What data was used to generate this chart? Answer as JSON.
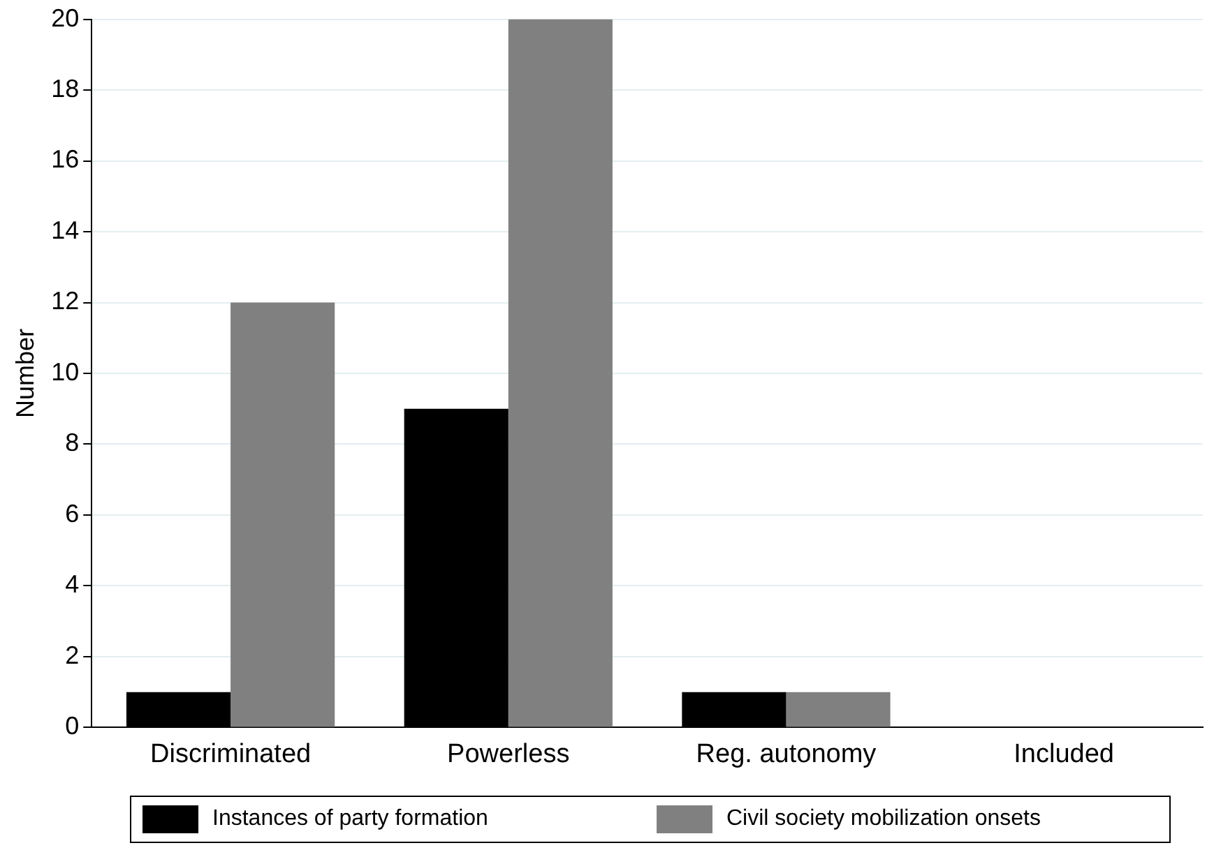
{
  "chart_data": {
    "type": "bar",
    "ylabel": "Number",
    "categories": [
      "Discriminated",
      "Powerless",
      "Reg. autonomy",
      "Included"
    ],
    "series": [
      {
        "name": "Instances of party formation",
        "color": "#000000",
        "values": [
          1,
          9,
          1,
          0
        ]
      },
      {
        "name": "Civil society mobilization onsets",
        "color": "#808080",
        "values": [
          12,
          20,
          1,
          0
        ]
      }
    ],
    "ylim": [
      0,
      20
    ],
    "yticks": [
      0,
      2,
      4,
      6,
      8,
      10,
      12,
      14,
      16,
      18,
      20
    ],
    "grid": "y",
    "legend": "bottom"
  }
}
